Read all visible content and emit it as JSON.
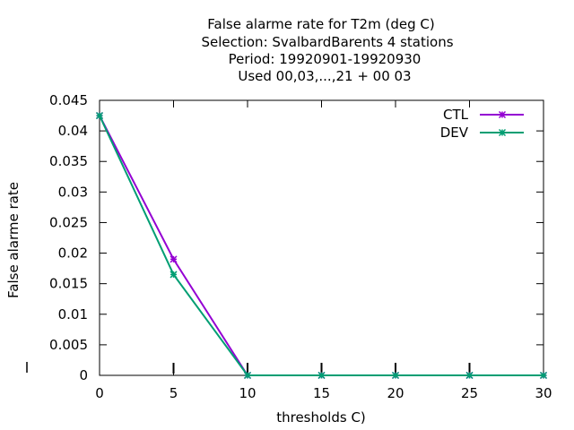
{
  "chart_data": {
    "type": "line",
    "title_lines": [
      "False alarme rate  for T2m (deg C)",
      "Selection: SvalbardBarents      4 stations",
      "Period: 19920901-19920930",
      "Used  00,03,...,21  + 00 03"
    ],
    "xlabel": "thresholds C)",
    "ylabel": "False alarme rate",
    "xlim": [
      0,
      30
    ],
    "ylim": [
      0,
      0.045
    ],
    "xticks": [
      "0",
      "5",
      "10",
      "15",
      "20",
      "25",
      "30"
    ],
    "yticks": [
      "0",
      "0.005",
      "0.01",
      "0.015",
      "0.02",
      "0.025",
      "0.03",
      "0.035",
      "0.04",
      "0.045"
    ],
    "x": [
      0,
      5,
      10,
      15,
      20,
      25,
      30
    ],
    "series": [
      {
        "name": "CTL",
        "color": "#9400d3",
        "marker": "plus-cross",
        "values": [
          0.0425,
          0.019,
          0,
          0,
          0,
          0,
          0
        ]
      },
      {
        "name": "DEV",
        "color": "#009e73",
        "marker": "plus-cross",
        "values": [
          0.0425,
          0.0165,
          0,
          0,
          0,
          0,
          0
        ]
      }
    ],
    "legend_position": "top-right",
    "grid": false
  }
}
